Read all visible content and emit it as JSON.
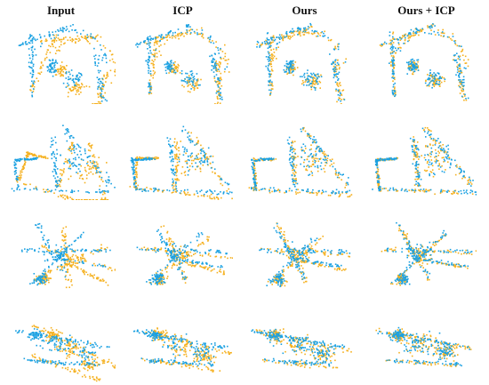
{
  "figure": {
    "columns": [
      {
        "key": "input",
        "label": "Input"
      },
      {
        "key": "icp",
        "label": "ICP"
      },
      {
        "key": "ours",
        "label": "Ours"
      },
      {
        "key": "ours_icp",
        "label": "Ours + ICP"
      }
    ],
    "rows": [
      {
        "key": "scene-1"
      },
      {
        "key": "scene-2"
      },
      {
        "key": "scene-3"
      },
      {
        "key": "scene-4"
      }
    ],
    "colors": {
      "source": "#1ba1e2",
      "target": "#f5b120",
      "background": "#ffffff",
      "text": "#111111"
    }
  }
}
